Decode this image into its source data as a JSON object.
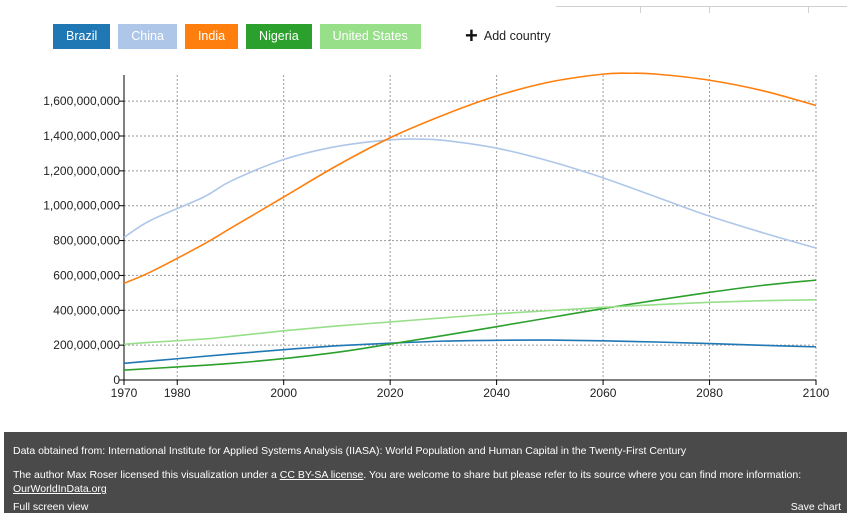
{
  "legend": {
    "countries": [
      {
        "label": "Brazil",
        "color": "#1f77b4"
      },
      {
        "label": "China",
        "color": "#aec7e8"
      },
      {
        "label": "India",
        "color": "#ff7f0e"
      },
      {
        "label": "Nigeria",
        "color": "#2ca02c"
      },
      {
        "label": "United States",
        "color": "#98df8a"
      }
    ],
    "add_country_label": "Add country"
  },
  "chart_data": {
    "type": "line",
    "xlim": [
      1970,
      2100
    ],
    "ylim": [
      0,
      1750000000
    ],
    "x_ticks": [
      1970,
      1980,
      2000,
      2020,
      2040,
      2060,
      2080,
      2100
    ],
    "y_ticks": [
      0,
      200000000,
      400000000,
      600000000,
      800000000,
      1000000000,
      1200000000,
      1400000000,
      1600000000
    ],
    "y_tick_labels": [
      "0",
      "200,000,000",
      "400,000,000",
      "600,000,000",
      "800,000,000",
      "1,000,000,000",
      "1,200,000,000",
      "1,400,000,000",
      "1,600,000,000"
    ],
    "grid": true,
    "series": [
      {
        "name": "Brazil",
        "color": "#1f77b4",
        "x": [
          1970,
          1980,
          1990,
          2000,
          2010,
          2020,
          2030,
          2040,
          2050,
          2060,
          2070,
          2080,
          2090,
          2100
        ],
        "y": [
          96000000,
          122000000,
          149000000,
          174000000,
          196000000,
          211000000,
          223000000,
          228000000,
          229000000,
          225000000,
          218000000,
          209000000,
          199000000,
          190000000
        ]
      },
      {
        "name": "China",
        "color": "#aec7e8",
        "x": [
          1970,
          1975,
          1985,
          1990,
          2000,
          2010,
          2020,
          2025,
          2030,
          2040,
          2050,
          2060,
          2070,
          2080,
          2090,
          2100
        ],
        "y": [
          818000000,
          916000000,
          1050000000,
          1140000000,
          1265000000,
          1340000000,
          1378000000,
          1382000000,
          1375000000,
          1330000000,
          1255000000,
          1160000000,
          1050000000,
          940000000,
          845000000,
          757000000
        ]
      },
      {
        "name": "India",
        "color": "#ff7f0e",
        "x": [
          1970,
          1975,
          1985,
          1990,
          2000,
          2010,
          2020,
          2030,
          2040,
          2050,
          2060,
          2065,
          2070,
          2080,
          2090,
          2100
        ],
        "y": [
          555000000,
          620000000,
          780000000,
          870000000,
          1050000000,
          1230000000,
          1390000000,
          1520000000,
          1630000000,
          1710000000,
          1755000000,
          1760000000,
          1755000000,
          1720000000,
          1660000000,
          1575000000
        ]
      },
      {
        "name": "Nigeria",
        "color": "#2ca02c",
        "x": [
          1970,
          1980,
          1990,
          2000,
          2010,
          2020,
          2030,
          2040,
          2050,
          2060,
          2070,
          2080,
          2090,
          2100
        ],
        "y": [
          57000000,
          75000000,
          95000000,
          123000000,
          159000000,
          206000000,
          255000000,
          306000000,
          358000000,
          410000000,
          458000000,
          503000000,
          543000000,
          573000000
        ]
      },
      {
        "name": "United States",
        "color": "#98df8a",
        "x": [
          1970,
          1975,
          1985,
          1990,
          2000,
          2010,
          2020,
          2030,
          2040,
          2050,
          2060,
          2070,
          2080,
          2090,
          2100
        ],
        "y": [
          205000000,
          216000000,
          235000000,
          250000000,
          282000000,
          310000000,
          333000000,
          357000000,
          380000000,
          398000000,
          417000000,
          432000000,
          446000000,
          455000000,
          460000000
        ]
      }
    ]
  },
  "footer": {
    "source_text": "Data obtained from: International Institute for Applied Systems Analysis (IIASA): World Population and Human Capital in the Twenty-First Century",
    "license_prefix": "The author Max Roser licensed this visualization under a ",
    "license_link": "CC BY-SA license",
    "license_suffix": ". You are welcome to share but please refer to its source where you can find more information:",
    "site_link": "OurWorldInData.org",
    "full_screen_label": "Full screen view",
    "save_label": "Save chart"
  }
}
